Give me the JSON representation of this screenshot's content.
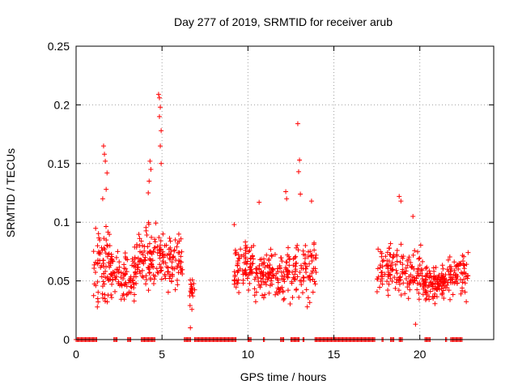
{
  "chart_data": {
    "type": "scatter",
    "title": "Day 277 of 2019, SRMTID for receiver arub",
    "xlabel": "GPS time / hours",
    "ylabel": "SRMTID / TECUs",
    "xlim": [
      0,
      24.3
    ],
    "ylim": [
      0,
      0.25
    ],
    "xticks": [
      0,
      5,
      10,
      15,
      20
    ],
    "yticks": [
      0,
      0.05,
      0.1,
      0.15,
      0.2,
      0.25
    ],
    "ytick_labels": [
      "0",
      "0.05",
      "0.1",
      "0.15",
      "0.2",
      "0.25"
    ],
    "grid": true,
    "marker": "+",
    "color": "#ff0000",
    "series": [
      {
        "name": "SRMTID",
        "clusters": [
          {
            "x_range": [
              1.0,
              2.1
            ],
            "y_center": 0.065,
            "spread": 0.028,
            "count": 85
          },
          {
            "x_range": [
              2.1,
              3.4
            ],
            "y_center": 0.055,
            "spread": 0.018,
            "count": 75
          },
          {
            "x_range": [
              3.4,
              5.0
            ],
            "y_center": 0.07,
            "spread": 0.022,
            "count": 110
          },
          {
            "x_range": [
              5.0,
              6.2
            ],
            "y_center": 0.065,
            "spread": 0.02,
            "count": 75
          },
          {
            "x_range": [
              6.6,
              6.9
            ],
            "y_center": 0.04,
            "spread": 0.015,
            "count": 18
          },
          {
            "x_range": [
              9.2,
              10.4
            ],
            "y_center": 0.062,
            "spread": 0.02,
            "count": 80
          },
          {
            "x_range": [
              10.4,
              12.0
            ],
            "y_center": 0.055,
            "spread": 0.015,
            "count": 100
          },
          {
            "x_range": [
              12.0,
              14.0
            ],
            "y_center": 0.06,
            "spread": 0.02,
            "count": 110
          },
          {
            "x_range": [
              17.5,
              19.0
            ],
            "y_center": 0.06,
            "spread": 0.018,
            "count": 85
          },
          {
            "x_range": [
              19.0,
              20.2
            ],
            "y_center": 0.055,
            "spread": 0.017,
            "count": 65
          },
          {
            "x_range": [
              20.2,
              21.5
            ],
            "y_center": 0.048,
            "spread": 0.012,
            "count": 110
          },
          {
            "x_range": [
              21.5,
              22.9
            ],
            "y_center": 0.055,
            "spread": 0.015,
            "count": 75
          }
        ],
        "outliers": [
          {
            "x": 1.6,
            "y": 0.165
          },
          {
            "x": 1.65,
            "y": 0.158
          },
          {
            "x": 1.7,
            "y": 0.152
          },
          {
            "x": 1.8,
            "y": 0.142
          },
          {
            "x": 1.75,
            "y": 0.128
          },
          {
            "x": 1.55,
            "y": 0.12
          },
          {
            "x": 4.8,
            "y": 0.209
          },
          {
            "x": 4.85,
            "y": 0.206
          },
          {
            "x": 4.9,
            "y": 0.198
          },
          {
            "x": 4.85,
            "y": 0.19
          },
          {
            "x": 4.95,
            "y": 0.178
          },
          {
            "x": 4.9,
            "y": 0.165
          },
          {
            "x": 4.3,
            "y": 0.152
          },
          {
            "x": 4.35,
            "y": 0.145
          },
          {
            "x": 4.95,
            "y": 0.15
          },
          {
            "x": 4.25,
            "y": 0.135
          },
          {
            "x": 4.2,
            "y": 0.125
          },
          {
            "x": 12.9,
            "y": 0.184
          },
          {
            "x": 13.0,
            "y": 0.153
          },
          {
            "x": 12.95,
            "y": 0.143
          },
          {
            "x": 13.05,
            "y": 0.124
          },
          {
            "x": 12.2,
            "y": 0.126
          },
          {
            "x": 12.25,
            "y": 0.12
          },
          {
            "x": 10.65,
            "y": 0.117
          },
          {
            "x": 18.8,
            "y": 0.122
          },
          {
            "x": 18.9,
            "y": 0.118
          },
          {
            "x": 19.6,
            "y": 0.105
          },
          {
            "x": 19.75,
            "y": 0.013
          },
          {
            "x": 6.65,
            "y": 0.01
          },
          {
            "x": 9.2,
            "y": 0.098
          },
          {
            "x": 13.7,
            "y": 0.118
          }
        ],
        "zero_segments": [
          [
            0.0,
            1.2
          ],
          [
            2.2,
            2.4
          ],
          [
            3.0,
            3.2
          ],
          [
            3.8,
            4.6
          ],
          [
            6.3,
            6.7
          ],
          [
            6.9,
            9.3
          ],
          [
            10.0,
            10.2
          ],
          [
            10.9,
            11.0
          ],
          [
            11.9,
            12.1
          ],
          [
            12.5,
            13.0
          ],
          [
            13.2,
            13.3
          ],
          [
            13.9,
            17.4
          ],
          [
            17.8,
            17.9
          ],
          [
            18.3,
            18.5
          ],
          [
            18.8,
            19.0
          ],
          [
            20.3,
            20.6
          ],
          [
            21.5,
            21.6
          ],
          [
            21.8,
            22.5
          ]
        ]
      }
    ]
  }
}
